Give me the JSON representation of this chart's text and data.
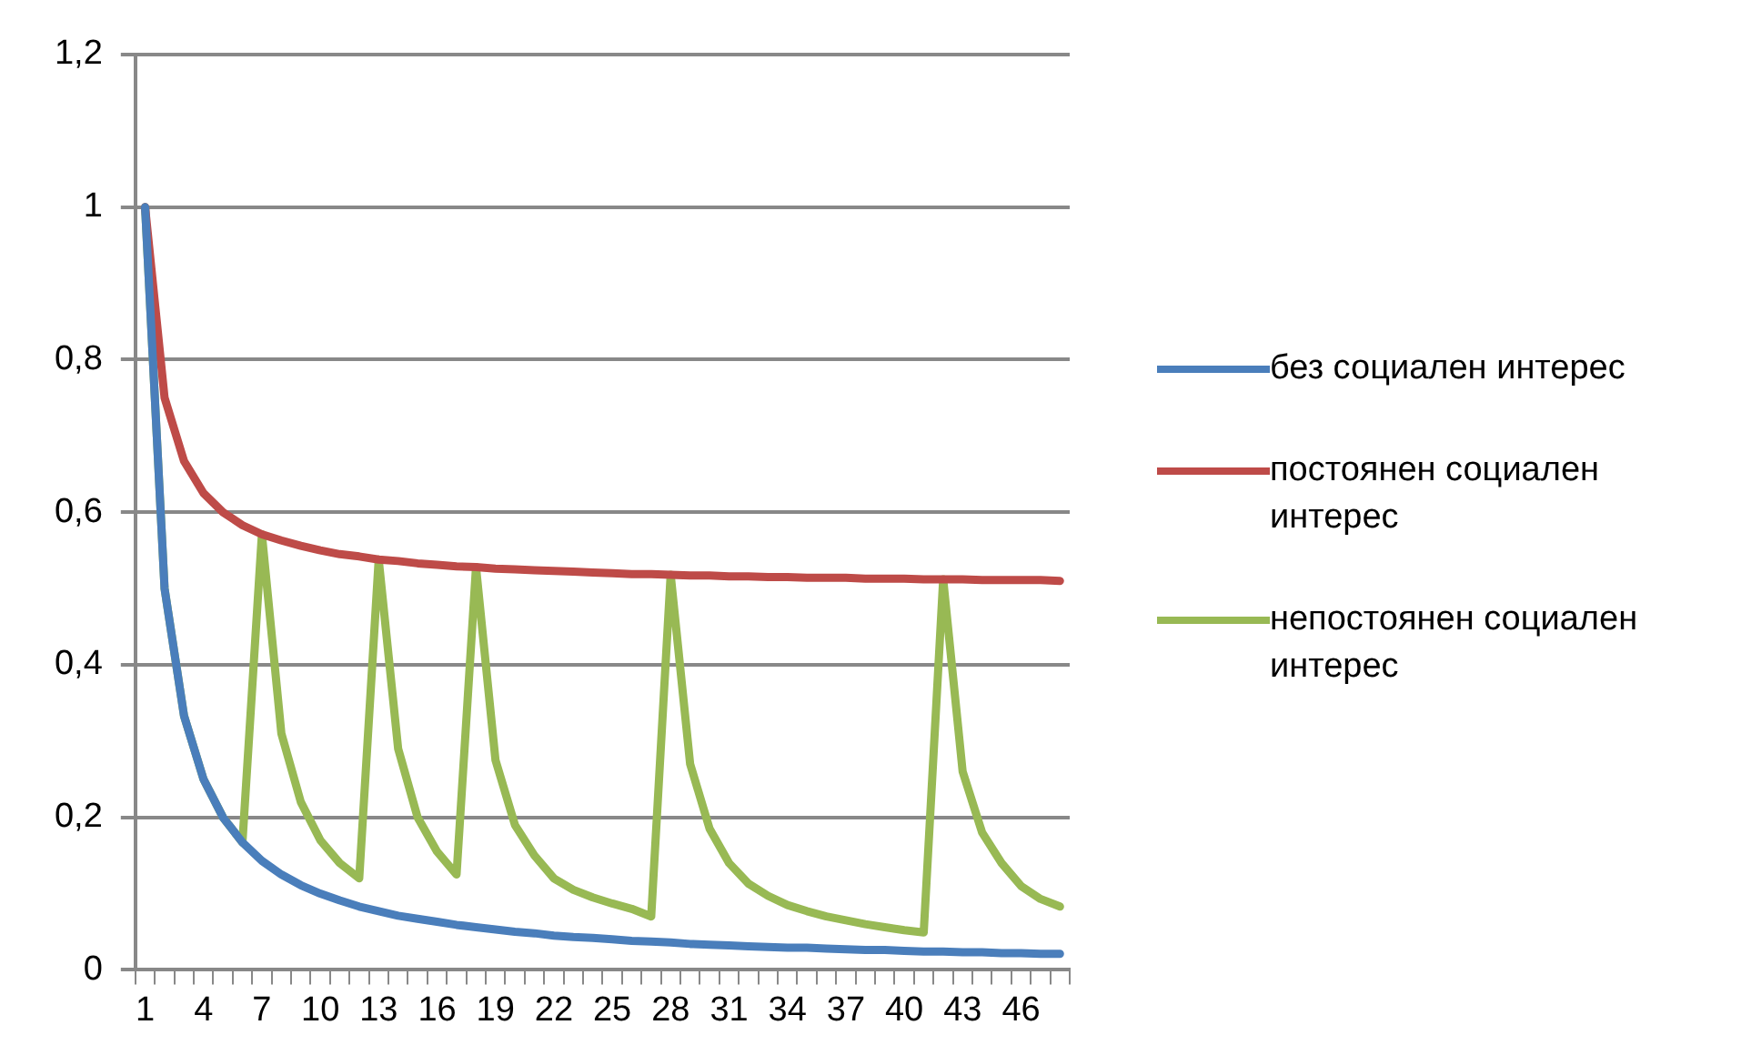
{
  "chart_data": {
    "type": "line",
    "categories": [
      "1",
      null,
      null,
      "4",
      null,
      null,
      "7",
      null,
      null,
      "10",
      null,
      null,
      "13",
      null,
      null,
      "16",
      null,
      null,
      "19",
      null,
      null,
      "22",
      null,
      null,
      "25",
      null,
      null,
      "28",
      null,
      null,
      "31",
      null,
      null,
      "34",
      null,
      null,
      "37",
      null,
      null,
      "40",
      null,
      null,
      "43",
      null,
      null,
      "46",
      null,
      null
    ],
    "series": [
      {
        "name": "без социален интерес",
        "color": "#4a7ebb",
        "values": [
          1,
          0.5,
          0.333,
          0.25,
          0.2,
          0.167,
          0.143,
          0.125,
          0.111,
          0.1,
          0.091,
          0.083,
          0.077,
          0.071,
          0.067,
          0.063,
          0.059,
          0.056,
          0.053,
          0.05,
          0.048,
          0.045,
          0.043,
          0.042,
          0.04,
          0.038,
          0.037,
          0.036,
          0.034,
          0.033,
          0.032,
          0.031,
          0.03,
          0.029,
          0.029,
          0.028,
          0.027,
          0.026,
          0.026,
          0.025,
          0.024,
          0.024,
          0.023,
          0.023,
          0.022,
          0.022,
          0.021,
          0.021
        ]
      },
      {
        "name": "постоянен социален интерес",
        "color": "#be4b48",
        "values": [
          1,
          0.75,
          0.667,
          0.625,
          0.6,
          0.583,
          0.571,
          0.563,
          0.556,
          0.55,
          0.545,
          0.542,
          0.538,
          0.536,
          0.533,
          0.531,
          0.529,
          0.528,
          0.526,
          0.525,
          0.524,
          0.523,
          0.522,
          0.521,
          0.52,
          0.519,
          0.519,
          0.518,
          0.517,
          0.517,
          0.516,
          0.516,
          0.515,
          0.515,
          0.514,
          0.514,
          0.514,
          0.513,
          0.513,
          0.513,
          0.512,
          0.512,
          0.512,
          0.511,
          0.511,
          0.511,
          0.511,
          0.51
        ]
      },
      {
        "name": "непостоянен социален интерес",
        "color": "#98b954",
        "values": [
          1,
          0.5,
          0.333,
          0.25,
          0.2,
          0.167,
          0.571,
          0.31,
          0.22,
          0.17,
          0.14,
          0.12,
          0.538,
          0.29,
          0.2,
          0.155,
          0.125,
          0.528,
          0.275,
          0.19,
          0.15,
          0.12,
          0.105,
          0.095,
          0.087,
          0.08,
          0.07,
          0.518,
          0.27,
          0.185,
          0.14,
          0.113,
          0.097,
          0.085,
          0.077,
          0.07,
          0.065,
          0.06,
          0.056,
          0.052,
          0.049,
          0.512,
          0.26,
          0.18,
          0.14,
          0.11,
          0.093,
          0.083
        ]
      }
    ],
    "ylim": [
      0,
      1.2
    ],
    "yticks": [
      0,
      {
        "value": 0.2,
        "label": "0,2"
      },
      {
        "value": 0.4,
        "label": "0,4"
      },
      {
        "value": 0.6,
        "label": "0,6"
      },
      {
        "value": 0.8,
        "label": "0,8"
      },
      1,
      {
        "value": 1.2,
        "label": "1,2"
      }
    ],
    "grid": "y",
    "legend": "right",
    "marker": "none",
    "line_style": "solid"
  }
}
